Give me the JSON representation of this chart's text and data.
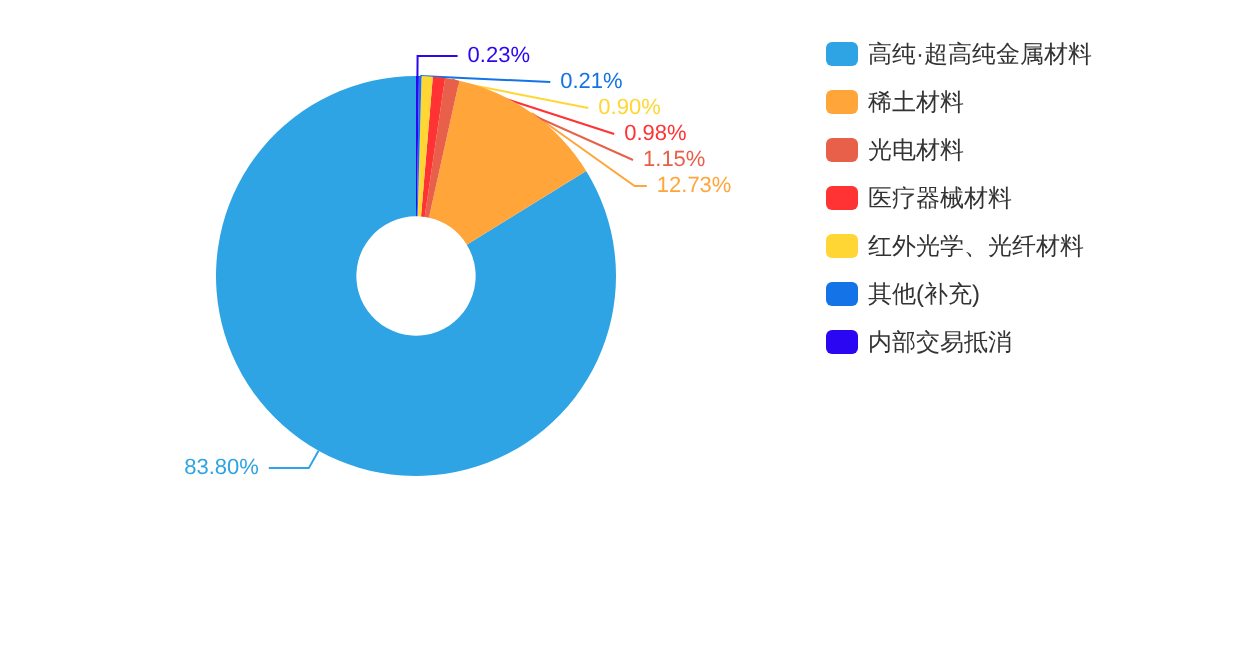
{
  "chart_data": {
    "type": "donut",
    "categories": [
      "高纯·超高纯金属材料",
      "稀土材料",
      "光电材料",
      "医疗器械材料",
      "红外光学、光纤材料",
      "其他(补充)",
      "内部交易抵消"
    ],
    "values": [
      83.8,
      12.73,
      1.15,
      0.98,
      0.9,
      0.21,
      0.23
    ],
    "colors": [
      "#2ea4e4",
      "#ffa53a",
      "#e8604a",
      "#ff3333",
      "#ffd633",
      "#1473e6",
      "#2b06f2"
    ],
    "value_labels": [
      "83.80%",
      "12.73%",
      "1.15%",
      "0.98%",
      "0.90%",
      "0.21%",
      "0.23%"
    ],
    "legend": "right"
  }
}
